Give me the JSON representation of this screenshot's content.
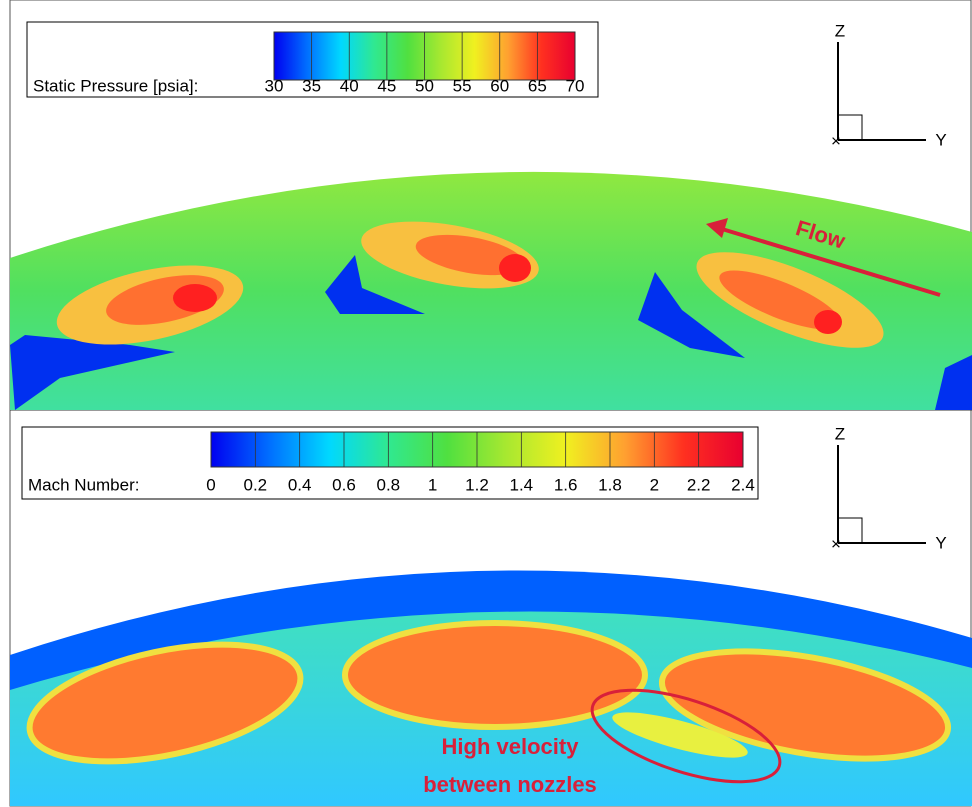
{
  "chart_data": [
    {
      "type": "contour",
      "colorbar_label": "Static Pressure [psia]:",
      "clim": [
        30,
        70
      ],
      "cticks": [
        30,
        35,
        40,
        45,
        50,
        55,
        60,
        65,
        70
      ],
      "colormap": [
        "#0000f0",
        "#0070ff",
        "#00d8ff",
        "#30e890",
        "#50e040",
        "#a8e830",
        "#f0f020",
        "#ffa030",
        "#ff3020",
        "#e80030"
      ],
      "axis_triad": {
        "vertical": "Z",
        "horizontal": "Y"
      },
      "annotations": [
        "Flow"
      ]
    },
    {
      "type": "contour",
      "colorbar_label": "Mach Number:",
      "clim": [
        0,
        2.4
      ],
      "cticks": [
        0,
        0.2,
        0.4,
        0.6,
        0.8,
        1,
        1.2,
        1.4,
        1.6,
        1.8,
        2,
        2.2,
        2.4
      ],
      "colormap": [
        "#0000f0",
        "#0070ff",
        "#00d8ff",
        "#30e890",
        "#50e040",
        "#a8e830",
        "#f0f020",
        "#ffa030",
        "#ff3020",
        "#e80030"
      ],
      "axis_triad": {
        "vertical": "Z",
        "horizontal": "Y"
      },
      "annotations": [
        "High velocity",
        "between nozzles"
      ]
    }
  ]
}
